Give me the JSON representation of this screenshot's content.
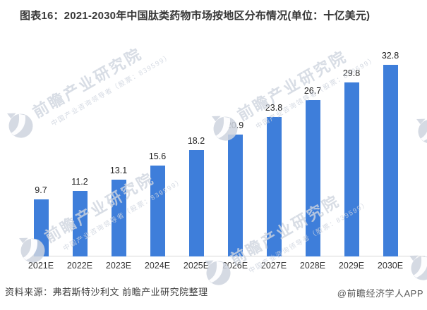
{
  "title": "图表16：2021-2030年中国肽类药物市场按地区分布情况(单位：十亿美元)",
  "chart_data": {
    "type": "bar",
    "title": "2021-2030年中国肽类药物市场按地区分布情况",
    "unit": "十亿美元",
    "categories": [
      "2021E",
      "2022E",
      "2023E",
      "2024E",
      "2025E",
      "2026E",
      "2027E",
      "2028E",
      "2029E",
      "2030E"
    ],
    "values": [
      9.7,
      11.2,
      13.1,
      15.6,
      18.2,
      20.9,
      23.8,
      26.7,
      29.8,
      32.8
    ],
    "xlabel": "",
    "ylabel": "",
    "ylim": [
      0,
      35
    ],
    "grid": false,
    "legend": "none",
    "bar_color": "#3e7eda",
    "value_label_color": "#1f1f1f",
    "axis_line_color": "#d9d9d9"
  },
  "footer": {
    "source": "资料来源：弗若斯特沙利文 前瞻产业研究院整理",
    "brand": "@前瞻经济学人APP"
  },
  "watermark": {
    "text": "前瞻产业研究院",
    "subtext": "中国产业咨询领导者（股票：839599）"
  }
}
